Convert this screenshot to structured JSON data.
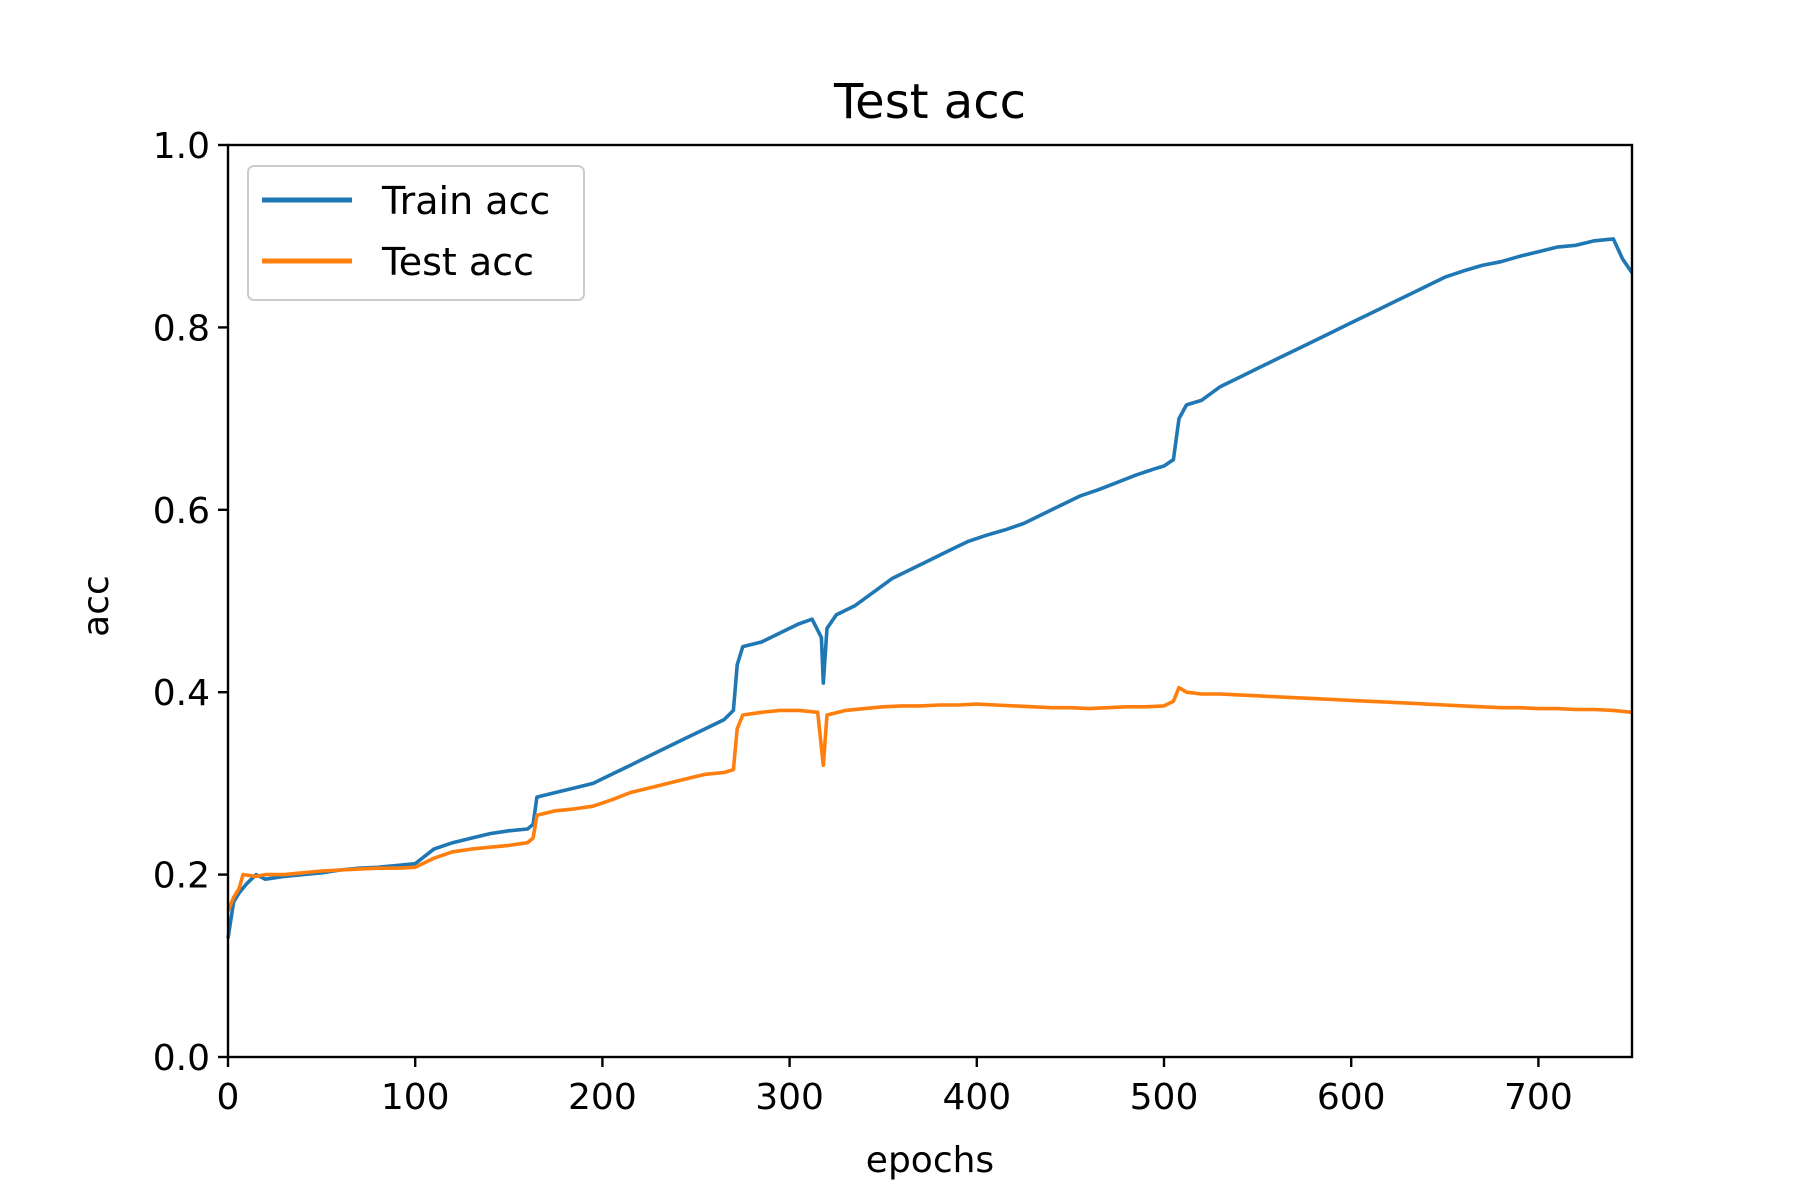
{
  "chart_data": {
    "type": "line",
    "title": "Test acc",
    "xlabel": "epochs",
    "ylabel": "acc",
    "xlim": [
      0,
      750
    ],
    "ylim": [
      0,
      1.0
    ],
    "x_ticks": [
      0,
      100,
      200,
      300,
      400,
      500,
      600,
      700
    ],
    "x_tick_labels": [
      "0",
      "100",
      "200",
      "300",
      "400",
      "500",
      "600",
      "700"
    ],
    "y_ticks": [
      0.0,
      0.2,
      0.4,
      0.6,
      0.8,
      1.0
    ],
    "y_tick_labels": [
      "0.0",
      "0.2",
      "0.4",
      "0.6",
      "0.8",
      "1.0"
    ],
    "grid": false,
    "legend_position": "top-left",
    "series": [
      {
        "name": "Train acc",
        "color": "#1f77b4",
        "points": [
          [
            0,
            0.13
          ],
          [
            3,
            0.17
          ],
          [
            6,
            0.18
          ],
          [
            10,
            0.19
          ],
          [
            15,
            0.2
          ],
          [
            20,
            0.195
          ],
          [
            30,
            0.198
          ],
          [
            40,
            0.2
          ],
          [
            50,
            0.202
          ],
          [
            60,
            0.205
          ],
          [
            70,
            0.207
          ],
          [
            80,
            0.208
          ],
          [
            90,
            0.21
          ],
          [
            100,
            0.212
          ],
          [
            110,
            0.228
          ],
          [
            120,
            0.235
          ],
          [
            130,
            0.24
          ],
          [
            140,
            0.245
          ],
          [
            150,
            0.248
          ],
          [
            160,
            0.25
          ],
          [
            163,
            0.255
          ],
          [
            165,
            0.285
          ],
          [
            175,
            0.29
          ],
          [
            185,
            0.295
          ],
          [
            195,
            0.3
          ],
          [
            205,
            0.31
          ],
          [
            215,
            0.32
          ],
          [
            225,
            0.33
          ],
          [
            235,
            0.34
          ],
          [
            245,
            0.35
          ],
          [
            255,
            0.36
          ],
          [
            265,
            0.37
          ],
          [
            270,
            0.38
          ],
          [
            272,
            0.43
          ],
          [
            275,
            0.45
          ],
          [
            285,
            0.455
          ],
          [
            295,
            0.465
          ],
          [
            305,
            0.475
          ],
          [
            312,
            0.48
          ],
          [
            317,
            0.46
          ],
          [
            318,
            0.41
          ],
          [
            320,
            0.47
          ],
          [
            325,
            0.485
          ],
          [
            335,
            0.495
          ],
          [
            345,
            0.51
          ],
          [
            355,
            0.525
          ],
          [
            365,
            0.535
          ],
          [
            375,
            0.545
          ],
          [
            385,
            0.555
          ],
          [
            395,
            0.565
          ],
          [
            405,
            0.572
          ],
          [
            415,
            0.578
          ],
          [
            425,
            0.585
          ],
          [
            435,
            0.595
          ],
          [
            445,
            0.605
          ],
          [
            455,
            0.615
          ],
          [
            465,
            0.622
          ],
          [
            475,
            0.63
          ],
          [
            485,
            0.638
          ],
          [
            495,
            0.645
          ],
          [
            500,
            0.648
          ],
          [
            505,
            0.655
          ],
          [
            508,
            0.7
          ],
          [
            512,
            0.715
          ],
          [
            520,
            0.72
          ],
          [
            530,
            0.735
          ],
          [
            540,
            0.745
          ],
          [
            550,
            0.755
          ],
          [
            560,
            0.765
          ],
          [
            570,
            0.775
          ],
          [
            580,
            0.785
          ],
          [
            590,
            0.795
          ],
          [
            600,
            0.805
          ],
          [
            610,
            0.815
          ],
          [
            620,
            0.825
          ],
          [
            630,
            0.835
          ],
          [
            640,
            0.845
          ],
          [
            650,
            0.855
          ],
          [
            660,
            0.862
          ],
          [
            670,
            0.868
          ],
          [
            680,
            0.872
          ],
          [
            690,
            0.878
          ],
          [
            700,
            0.883
          ],
          [
            710,
            0.888
          ],
          [
            720,
            0.89
          ],
          [
            730,
            0.895
          ],
          [
            740,
            0.897
          ],
          [
            745,
            0.875
          ],
          [
            750,
            0.86
          ]
        ]
      },
      {
        "name": "Test acc",
        "color": "#ff7f0e",
        "points": [
          [
            0,
            0.16
          ],
          [
            3,
            0.175
          ],
          [
            6,
            0.185
          ],
          [
            8,
            0.2
          ],
          [
            15,
            0.198
          ],
          [
            20,
            0.2
          ],
          [
            30,
            0.2
          ],
          [
            40,
            0.202
          ],
          [
            50,
            0.204
          ],
          [
            60,
            0.205
          ],
          [
            70,
            0.206
          ],
          [
            80,
            0.207
          ],
          [
            90,
            0.207
          ],
          [
            100,
            0.208
          ],
          [
            110,
            0.218
          ],
          [
            120,
            0.225
          ],
          [
            130,
            0.228
          ],
          [
            140,
            0.23
          ],
          [
            150,
            0.232
          ],
          [
            160,
            0.235
          ],
          [
            163,
            0.24
          ],
          [
            165,
            0.265
          ],
          [
            175,
            0.27
          ],
          [
            185,
            0.272
          ],
          [
            195,
            0.275
          ],
          [
            205,
            0.282
          ],
          [
            215,
            0.29
          ],
          [
            225,
            0.295
          ],
          [
            235,
            0.3
          ],
          [
            245,
            0.305
          ],
          [
            255,
            0.31
          ],
          [
            265,
            0.312
          ],
          [
            270,
            0.315
          ],
          [
            272,
            0.36
          ],
          [
            275,
            0.375
          ],
          [
            285,
            0.378
          ],
          [
            295,
            0.38
          ],
          [
            305,
            0.38
          ],
          [
            315,
            0.378
          ],
          [
            318,
            0.32
          ],
          [
            320,
            0.375
          ],
          [
            330,
            0.38
          ],
          [
            340,
            0.382
          ],
          [
            350,
            0.384
          ],
          [
            360,
            0.385
          ],
          [
            370,
            0.385
          ],
          [
            380,
            0.386
          ],
          [
            390,
            0.386
          ],
          [
            400,
            0.387
          ],
          [
            410,
            0.386
          ],
          [
            420,
            0.385
          ],
          [
            430,
            0.384
          ],
          [
            440,
            0.383
          ],
          [
            450,
            0.383
          ],
          [
            460,
            0.382
          ],
          [
            470,
            0.383
          ],
          [
            480,
            0.384
          ],
          [
            490,
            0.384
          ],
          [
            500,
            0.385
          ],
          [
            505,
            0.39
          ],
          [
            508,
            0.405
          ],
          [
            512,
            0.4
          ],
          [
            520,
            0.398
          ],
          [
            530,
            0.398
          ],
          [
            540,
            0.397
          ],
          [
            550,
            0.396
          ],
          [
            560,
            0.395
          ],
          [
            570,
            0.394
          ],
          [
            580,
            0.393
          ],
          [
            590,
            0.392
          ],
          [
            600,
            0.391
          ],
          [
            610,
            0.39
          ],
          [
            620,
            0.389
          ],
          [
            630,
            0.388
          ],
          [
            640,
            0.387
          ],
          [
            650,
            0.386
          ],
          [
            660,
            0.385
          ],
          [
            670,
            0.384
          ],
          [
            680,
            0.383
          ],
          [
            690,
            0.383
          ],
          [
            700,
            0.382
          ],
          [
            710,
            0.382
          ],
          [
            720,
            0.381
          ],
          [
            730,
            0.381
          ],
          [
            740,
            0.38
          ],
          [
            750,
            0.378
          ]
        ]
      }
    ]
  }
}
